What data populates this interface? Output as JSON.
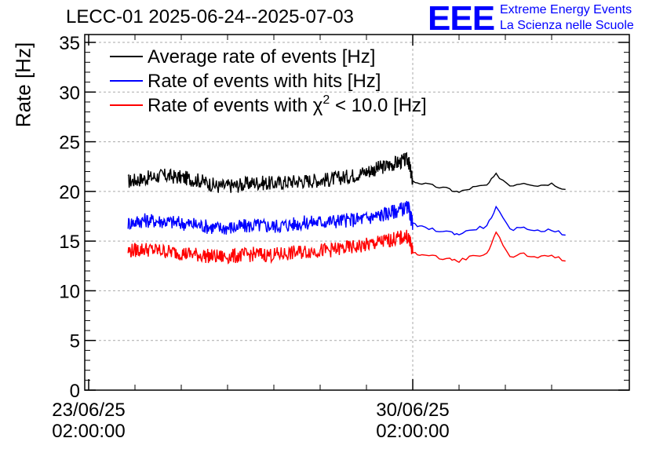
{
  "chart_data": {
    "type": "line",
    "title": "LECC-01 2025-06-24--2025-07-03",
    "ylabel": "Rate [Hz]",
    "xlabel": "",
    "ylim": [
      0,
      35
    ],
    "yticks": [
      0,
      5,
      10,
      15,
      20,
      25,
      30,
      35
    ],
    "xticks": [
      {
        "value": "23/06/25 02:00:00",
        "line1": "23/06/25",
        "line2": "02:00:00"
      },
      {
        "value": "30/06/25 02:00:00",
        "line1": "30/06/25",
        "line2": "02:00:00"
      }
    ],
    "grid": true,
    "legend_position": "top-left",
    "x_unit": "days after 2025-06-23 02:00:00",
    "series": [
      {
        "name": "Average rate of events [Hz]",
        "color": "#000000",
        "x": [
          0.85,
          1.2,
          1.6,
          2.0,
          2.4,
          2.8,
          3.2,
          3.6,
          4.0,
          4.4,
          4.8,
          5.2,
          5.6,
          6.0,
          6.3,
          6.6,
          6.9,
          7.0,
          7.2,
          7.5,
          7.8,
          8.0,
          8.3,
          8.6,
          8.8,
          9.1,
          9.4,
          9.7,
          10.0,
          10.3
        ],
        "values": [
          21.0,
          21.3,
          21.6,
          21.4,
          21.1,
          20.5,
          20.6,
          20.9,
          20.8,
          21.0,
          21.1,
          21.2,
          21.5,
          22.0,
          22.4,
          22.8,
          23.2,
          21.0,
          20.8,
          20.5,
          20.2,
          19.9,
          20.4,
          20.6,
          21.7,
          20.6,
          20.9,
          20.6,
          20.8,
          20.2
        ]
      },
      {
        "name": "Rate of events with hits [Hz]",
        "color": "#0000ff",
        "x": [
          0.85,
          1.2,
          1.6,
          2.0,
          2.4,
          2.8,
          3.2,
          3.6,
          4.0,
          4.4,
          4.8,
          5.2,
          5.6,
          6.0,
          6.3,
          6.6,
          6.9,
          7.0,
          7.2,
          7.5,
          7.8,
          8.0,
          8.3,
          8.6,
          8.8,
          9.1,
          9.4,
          9.7,
          10.0,
          10.3
        ],
        "values": [
          16.8,
          17.1,
          17.0,
          16.8,
          16.6,
          16.3,
          16.4,
          16.6,
          16.5,
          16.7,
          16.9,
          17.0,
          17.1,
          17.3,
          17.6,
          18.0,
          18.4,
          16.7,
          16.4,
          16.1,
          15.9,
          15.7,
          16.2,
          16.5,
          18.4,
          16.1,
          16.4,
          16.0,
          16.2,
          15.6
        ]
      },
      {
        "name": "Rate of events with χ² < 10.0 [Hz]",
        "color": "#ff0000",
        "x": [
          0.85,
          1.2,
          1.6,
          2.0,
          2.4,
          2.8,
          3.2,
          3.6,
          4.0,
          4.4,
          4.8,
          5.2,
          5.6,
          6.0,
          6.3,
          6.6,
          6.9,
          7.0,
          7.2,
          7.5,
          7.8,
          8.0,
          8.3,
          8.6,
          8.8,
          9.1,
          9.4,
          9.7,
          10.0,
          10.3
        ],
        "values": [
          14.0,
          14.2,
          14.0,
          13.8,
          13.6,
          13.4,
          13.5,
          13.7,
          13.6,
          13.8,
          14.0,
          14.1,
          14.3,
          14.6,
          14.9,
          15.2,
          15.5,
          13.9,
          13.6,
          13.4,
          13.2,
          13.0,
          13.5,
          13.7,
          15.9,
          13.4,
          13.7,
          13.3,
          13.6,
          13.0
        ]
      }
    ]
  },
  "logo": {
    "mark": "EEE",
    "line1": "Extreme Energy Events",
    "line2": "La Scienza nelle Scuole"
  },
  "legend": {
    "entry1_label": "Average rate of events [Hz]",
    "entry2_label": "Rate of events with hits [Hz]",
    "entry3_prefix": "Rate of events with ",
    "entry3_chi": "χ",
    "entry3_sup": "2",
    "entry3_suffix": " < 10.0 [Hz]"
  }
}
